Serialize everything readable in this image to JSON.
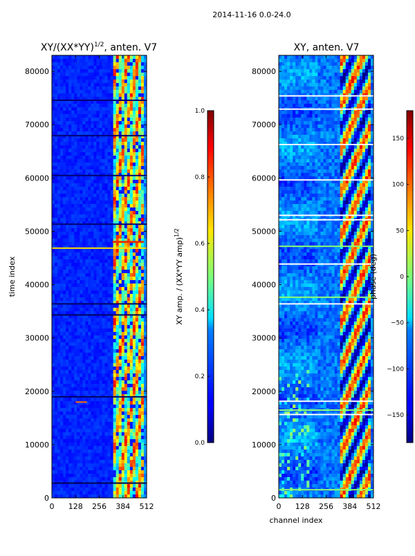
{
  "figure": {
    "suptitle": "2014-11-16 0.0-24.0"
  },
  "chart_data": [
    {
      "type": "heatmap",
      "title": "XY/(XX*YY)",
      "title_sup": "1/2",
      "title_suffix": ", anten. V7",
      "xlabel": "",
      "ylabel": "time index",
      "xlim": [
        0,
        512
      ],
      "ylim": [
        0,
        83000
      ],
      "xticks": [
        0,
        128,
        256,
        384,
        512
      ],
      "yticks": [
        0,
        10000,
        20000,
        30000,
        40000,
        50000,
        60000,
        70000,
        80000
      ],
      "colormap": "jet",
      "colorbar": {
        "label_main": "XY amp. / (XX*YY amp)",
        "label_sup": "1/2",
        "range": [
          0.0,
          1.0
        ],
        "ticks": [
          "0.0",
          "0.2",
          "0.4",
          "0.6",
          "0.8",
          "1.0"
        ]
      },
      "grid": false
    },
    {
      "type": "heatmap",
      "title": "XY, anten. V7",
      "xlabel": "channel index",
      "ylabel": "",
      "xlim": [
        0,
        512
      ],
      "ylim": [
        0,
        83000
      ],
      "xticks": [
        0,
        128,
        256,
        384,
        512
      ],
      "yticks": [
        0,
        10000,
        20000,
        30000,
        40000,
        50000,
        60000,
        70000,
        80000
      ],
      "colormap": "jet",
      "colorbar": {
        "label": "phase (deg)",
        "range": [
          -180,
          180
        ],
        "ticks": [
          150,
          100,
          50,
          0,
          -50,
          -100,
          -150
        ],
        "tick_labels": [
          "150",
          "100",
          "50",
          "0",
          "−50",
          "−100",
          "−150"
        ]
      },
      "grid": false
    }
  ]
}
